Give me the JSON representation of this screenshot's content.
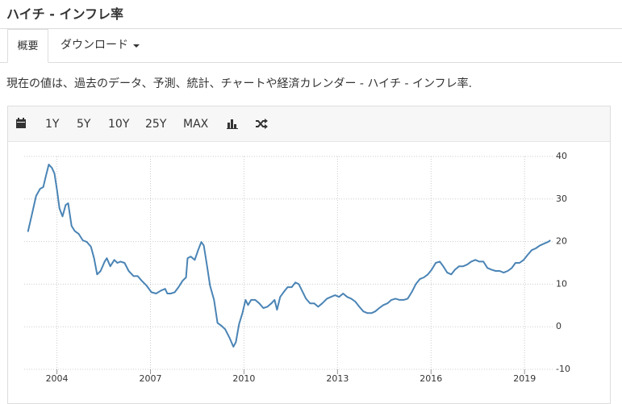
{
  "header": {
    "title": "ハイチ - インフレ率"
  },
  "tabs": [
    "概要",
    "ダウンロード"
  ],
  "description": "現在の値は、過去のデータ、予測、統計、チャートや経済カレンダー - ハイチ - インフレ率.",
  "toolbar": [
    "1Y",
    "5Y",
    "10Y",
    "25Y",
    "MAX"
  ],
  "chart_data": {
    "type": "line",
    "color": "#4a84b5",
    "grid": true,
    "x": [
      2003.07,
      2003.2,
      2003.33,
      2003.46,
      2003.56,
      2003.66,
      2003.74,
      2003.84,
      2003.92,
      2004.0,
      2004.08,
      2004.18,
      2004.28,
      2004.36,
      2004.47,
      2004.57,
      2004.7,
      2004.83,
      2004.96,
      2005.09,
      2005.19,
      2005.29,
      2005.4,
      2005.53,
      2005.6,
      2005.71,
      2005.84,
      2005.94,
      2006.04,
      2006.17,
      2006.3,
      2006.46,
      2006.59,
      2006.72,
      2006.87,
      2007.03,
      2007.18,
      2007.34,
      2007.47,
      2007.54,
      2007.65,
      2007.78,
      2007.9,
      2008.03,
      2008.14,
      2008.19,
      2008.29,
      2008.42,
      2008.53,
      2008.63,
      2008.71,
      2008.81,
      2008.91,
      2009.04,
      2009.15,
      2009.28,
      2009.4,
      2009.53,
      2009.66,
      2009.74,
      2009.84,
      2009.95,
      2010.05,
      2010.13,
      2010.23,
      2010.36,
      2010.49,
      2010.62,
      2010.75,
      2010.88,
      2010.98,
      2011.06,
      2011.16,
      2011.27,
      2011.4,
      2011.53,
      2011.65,
      2011.76,
      2011.86,
      2011.99,
      2012.12,
      2012.25,
      2012.38,
      2012.51,
      2012.66,
      2012.79,
      2012.92,
      2013.05,
      2013.18,
      2013.31,
      2013.44,
      2013.57,
      2013.7,
      2013.83,
      2013.96,
      2014.09,
      2014.21,
      2014.34,
      2014.47,
      2014.6,
      2014.73,
      2014.86,
      2014.99,
      2015.12,
      2015.25,
      2015.38,
      2015.51,
      2015.64,
      2015.77,
      2015.9,
      2016.02,
      2016.15,
      2016.28,
      2016.39,
      2016.52,
      2016.65,
      2016.77,
      2016.9,
      2017.03,
      2017.16,
      2017.29,
      2017.42,
      2017.55,
      2017.68,
      2017.81,
      2017.94,
      2018.07,
      2018.2,
      2018.33,
      2018.46,
      2018.59,
      2018.71,
      2018.84,
      2018.97,
      2019.1,
      2019.23,
      2019.36,
      2019.49,
      2019.62,
      2019.75,
      2019.83
    ],
    "values": [
      22.3,
      26.5,
      30.7,
      32.4,
      32.8,
      35.8,
      38.1,
      37.3,
      36,
      32.2,
      27.8,
      25.9,
      28.6,
      29,
      23.7,
      22.5,
      21.8,
      20.3,
      19.9,
      18.8,
      16.1,
      12.3,
      13.1,
      15.3,
      16.1,
      14.2,
      15.7,
      15,
      15.3,
      15,
      13.1,
      11.9,
      11.9,
      10.8,
      9.7,
      8.1,
      7.8,
      8.5,
      8.9,
      7.8,
      7.8,
      8.1,
      9.3,
      10.8,
      11.6,
      16.1,
      16.5,
      15.7,
      18,
      19.9,
      19.1,
      14.6,
      9.7,
      6.3,
      0.9,
      0.2,
      -0.6,
      -2.5,
      -4.7,
      -3.6,
      0.6,
      3.2,
      6.3,
      5.1,
      6.3,
      6.3,
      5.5,
      4.4,
      4.7,
      5.5,
      6.3,
      4.0,
      7,
      8.1,
      9.3,
      9.3,
      10.4,
      10,
      8.5,
      6.6,
      5.5,
      5.5,
      4.7,
      5.5,
      6.6,
      7,
      7.4,
      7,
      7.8,
      7,
      6.6,
      5.9,
      4.7,
      3.6,
      3.2,
      3.2,
      3.6,
      4.4,
      5.1,
      5.5,
      6.3,
      6.6,
      6.3,
      6.3,
      6.6,
      8.1,
      10,
      11.2,
      11.6,
      12.3,
      13.4,
      15,
      15.3,
      14.2,
      12.7,
      12.3,
      13.4,
      14.2,
      14.2,
      14.6,
      15.3,
      15.7,
      15.3,
      15.3,
      13.8,
      13.4,
      13.1,
      13.1,
      12.7,
      13.1,
      13.8,
      15,
      15,
      15.7,
      16.9,
      18,
      18.4,
      19.1,
      19.5,
      19.9,
      20.3
    ],
    "xlim": [
      2002.95,
      2019.9
    ],
    "xticks": [
      2004,
      2007,
      2010,
      2013,
      2016,
      2019
    ],
    "ylim": [
      -10,
      40
    ],
    "yticks": [
      40,
      30,
      20,
      10,
      0,
      -10
    ]
  }
}
